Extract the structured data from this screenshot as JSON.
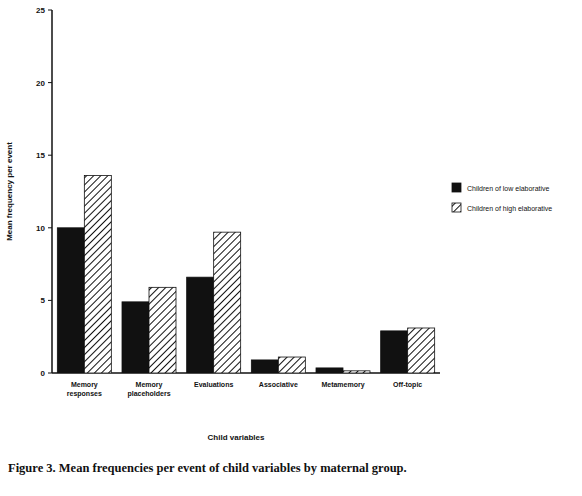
{
  "chart_data": {
    "type": "bar",
    "title": "Figure 3. Mean frequencies per event of child variables by maternal group.",
    "x_label": "Child variables",
    "y_label": "Mean frequency per event",
    "categories": [
      "Memory responses",
      "Memory placeholders",
      "Evaluations",
      "Associative",
      "Metamemory",
      "Off-topic"
    ],
    "series": [
      {
        "name": "Children of low elaborative",
        "color": "#111111",
        "marker": "solid",
        "values": [
          10.0,
          4.9,
          6.6,
          0.9,
          0.35,
          2.9
        ]
      },
      {
        "name": "Children of high elaborative",
        "color": "#111111",
        "marker": "hatch",
        "values": [
          13.6,
          5.9,
          9.7,
          1.1,
          0.15,
          3.1
        ]
      }
    ],
    "ylim": [
      0,
      25
    ],
    "yticks": [
      0,
      5,
      10,
      15,
      20,
      25
    ],
    "grid": false,
    "legend": "right"
  }
}
